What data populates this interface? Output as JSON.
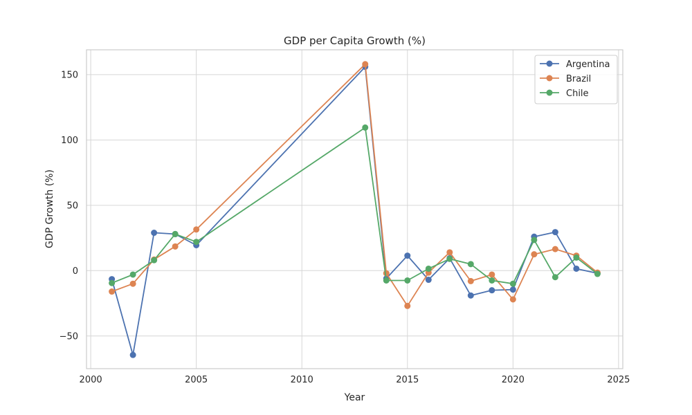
{
  "chart_data": {
    "type": "line",
    "title": "GDP per Capita Growth (%)",
    "xlabel": "Year",
    "ylabel": "GDP Growth (%)",
    "xlim": [
      1999.8,
      2025.2
    ],
    "ylim": [
      -75,
      169
    ],
    "xticks": [
      2000,
      2005,
      2010,
      2015,
      2020,
      2025
    ],
    "yticks": [
      -50,
      0,
      50,
      100,
      150
    ],
    "grid": true,
    "legend_position": "top-right",
    "x": [
      2001,
      2002,
      2003,
      2004,
      2005,
      2013,
      2014,
      2015,
      2016,
      2017,
      2018,
      2019,
      2020,
      2021,
      2022,
      2023,
      2024
    ],
    "series": [
      {
        "name": "Argentina",
        "color": "#4c72b0",
        "values": [
          -6.5,
          -64.5,
          29,
          28,
          19.5,
          156,
          -6,
          11.5,
          -7,
          9.5,
          -19,
          -15,
          -14.5,
          26,
          29.5,
          1.5,
          -2
        ]
      },
      {
        "name": "Brazil",
        "color": "#dd8452",
        "values": [
          -16,
          -10,
          8.5,
          18.5,
          31.5,
          158,
          -2,
          -27,
          -1.5,
          14,
          -8,
          -3,
          -22,
          12.5,
          16.5,
          11.5,
          -1.5
        ]
      },
      {
        "name": "Chile",
        "color": "#55a868",
        "values": [
          -9.5,
          -3,
          8,
          28,
          22,
          109.5,
          -7.5,
          -7.5,
          1.5,
          9,
          5,
          -7.5,
          -10,
          23.5,
          -5,
          10,
          -2.5
        ]
      }
    ]
  }
}
